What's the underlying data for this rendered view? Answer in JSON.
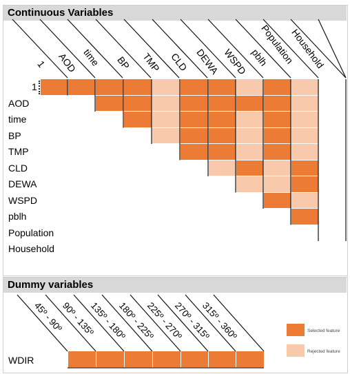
{
  "continuous": {
    "title": "Continuous Variables",
    "variables": [
      "1",
      "AOD",
      "time",
      "BP",
      "TMP",
      "CLD",
      "DEWA",
      "WSPD",
      "pblh",
      "Population",
      "Household"
    ],
    "matrix": [
      [
        "S",
        "S",
        "S",
        "R",
        "S",
        "S",
        "R",
        "S",
        "R"
      ],
      [
        "S",
        "S",
        "R",
        "S",
        "S",
        "S",
        "S",
        "R"
      ],
      [
        "S",
        "R",
        "S",
        "S",
        "R",
        "S",
        "R"
      ],
      [
        "R",
        "S",
        "S",
        "R",
        "S",
        "R"
      ],
      [
        "S",
        "S",
        "R",
        "S",
        "R"
      ],
      [
        "R",
        "S",
        "R",
        "S"
      ],
      [
        "R",
        "R",
        "S"
      ],
      [
        "S",
        "R"
      ],
      [
        "S"
      ],
      []
    ]
  },
  "dummy": {
    "title": "Dummy variables",
    "row_label": "WDIR",
    "columns": [
      "45º - 90º",
      "90º - 135º",
      "135º - 180º",
      "180º - 225º",
      "225º - 270º",
      "270º - 315º",
      "315º - 360º"
    ],
    "values": [
      "S",
      "S",
      "S",
      "S",
      "S",
      "S",
      "S"
    ]
  },
  "legend": {
    "selected_label": "Selected feature",
    "rejected_label": "Rejected feature",
    "selected_color": "#ec7b35",
    "rejected_color": "#f8c9aa"
  }
}
